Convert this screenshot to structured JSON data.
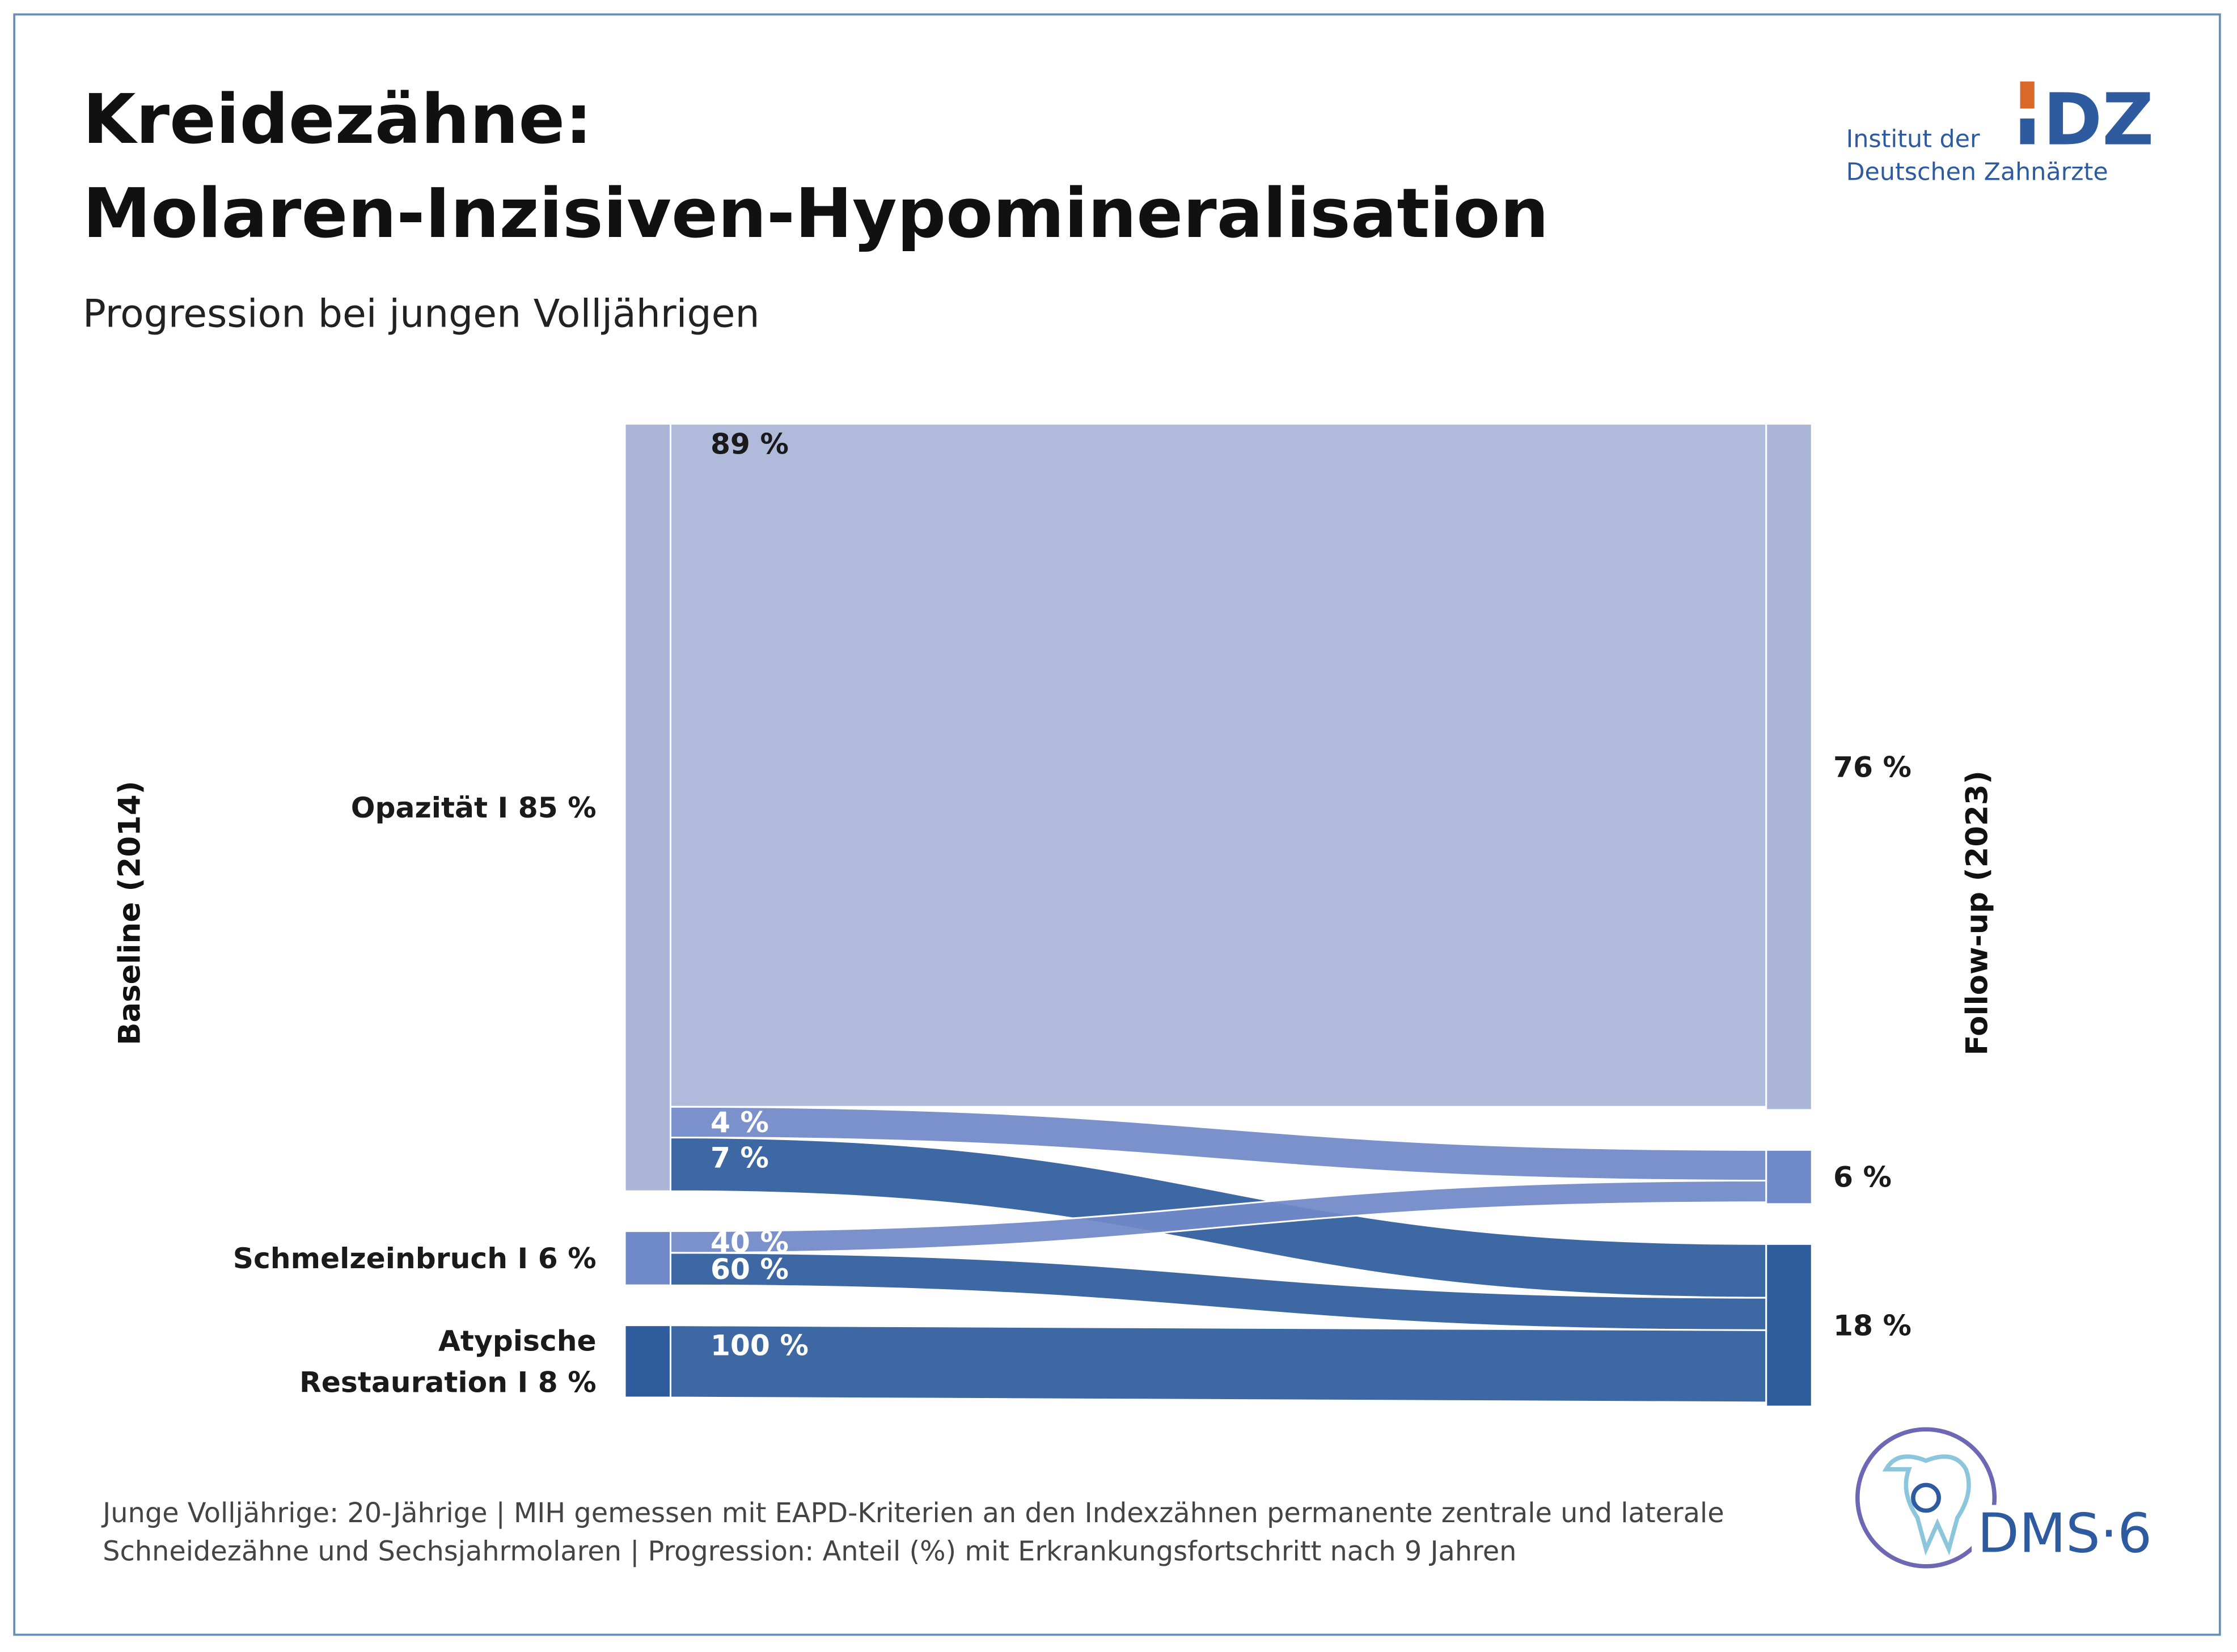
{
  "chart_data": {
    "type": "sankey",
    "title_lines": [
      "Kreidezähne:",
      "Molaren-Inzisiven-Hypomineralisation"
    ],
    "subtitle": "Progression bei jungen Volljährigen",
    "source_axis_label": "Baseline (2014)",
    "target_axis_label": "Follow-up (2023)",
    "sources": {
      "label_lines": [
        [
          "Opazität I 85 %"
        ],
        [
          "Schmelzeinbruch I 6 %"
        ],
        [
          "Atypische",
          "Restauration I 8 %"
        ]
      ],
      "values": [
        85,
        6,
        8
      ],
      "colors": [
        "#aab5d8",
        "#7089c8",
        "#2f5c9c"
      ]
    },
    "targets": {
      "values": [
        76,
        6,
        18
      ],
      "value_labels": [
        "76 %",
        "6 %",
        "18 %"
      ],
      "colors": [
        "#aab5d8",
        "#7089c8",
        "#2f5c9c"
      ]
    },
    "links": {
      "source": [
        0,
        0,
        0,
        1,
        1,
        2
      ],
      "target": [
        0,
        1,
        2,
        1,
        2,
        2
      ],
      "values": [
        89,
        4,
        7,
        40,
        60,
        100
      ],
      "value_labels": [
        "89 %",
        "4 %",
        "7 %",
        "40 %",
        "60 %",
        "100 %"
      ]
    }
  },
  "footnote": [
    "Junge Volljährige: 20-Jährige | MIH gemessen mit EAPD-Kriterien an den Indexzähnen permanente zentrale und laterale",
    "Schneidezähne und Sechsjahrmolaren | Progression: Anteil (%) mit Erkrankungsfortschritt nach 9 Jahren"
  ],
  "logo": {
    "mark": "DZ",
    "lines": [
      "Institut der",
      "Deutschen Zahnärzte"
    ]
  },
  "dms_logo": "DMS·6"
}
